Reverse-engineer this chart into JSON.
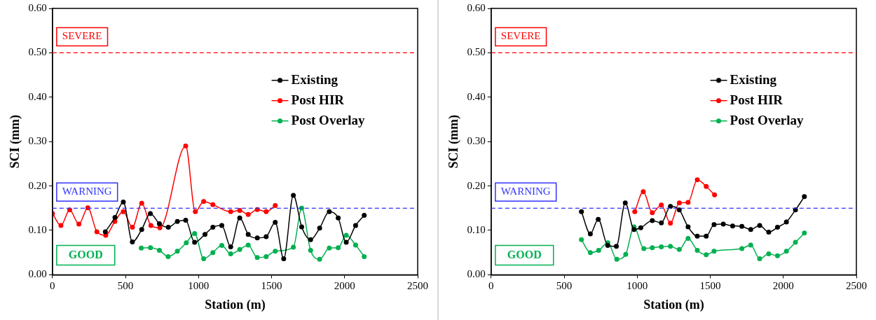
{
  "chart_data": [
    {
      "type": "line",
      "xlabel": "Station (m)",
      "ylabel": "SCI (mm)",
      "xlim": [
        0,
        2500
      ],
      "xticks": [
        0,
        500,
        1000,
        1500,
        2000,
        2500
      ],
      "ylim": [
        0,
        0.6
      ],
      "yticks": [
        {
          "value": 0,
          "label": "0.00"
        },
        {
          "value": 0.1,
          "label": "0.10"
        },
        {
          "value": 0.2,
          "label": "0.20"
        },
        {
          "value": 0.3,
          "label": "0.30"
        },
        {
          "value": 0.4,
          "label": "0.40"
        },
        {
          "value": 0.5,
          "label": "0.50"
        },
        {
          "value": 0.6,
          "label": "0.60"
        }
      ],
      "grid": false,
      "legend": "top right",
      "marker": "circle",
      "line_style": "solid",
      "ref_lines": [
        {
          "axis": "y",
          "value": 0.5,
          "label": "SEVERE",
          "color": "#ff0000",
          "line_style": "dashed"
        },
        {
          "axis": "y",
          "value": 0.15,
          "label": "WARNING",
          "color": "#3333ff",
          "line_style": "dashed"
        }
      ],
      "annotations": [
        "GOOD"
      ],
      "series": [
        {
          "name": "Existing",
          "color": "#000000",
          "x": [
            362,
            428,
            485,
            547,
            611,
            670,
            732,
            793,
            855,
            912,
            973,
            1044,
            1098,
            1159,
            1220,
            1282,
            1340,
            1402,
            1463,
            1525,
            1583,
            1649,
            1706,
            1767,
            1829,
            1895,
            1956,
            2011,
            2075,
            2134
          ],
          "values": [
            0.097,
            0.129,
            0.164,
            0.074,
            0.102,
            0.138,
            0.115,
            0.107,
            0.12,
            0.123,
            0.073,
            0.091,
            0.107,
            0.111,
            0.063,
            0.128,
            0.091,
            0.083,
            0.086,
            0.118,
            0.036,
            0.179,
            0.108,
            0.079,
            0.105,
            0.142,
            0.128,
            0.073,
            0.111,
            0.134
          ]
        },
        {
          "name": "Post HIR",
          "color": "#ff0000",
          "x": [
            0,
            58,
            118,
            181,
            242,
            304,
            365,
            427,
            485,
            547,
            611,
            674,
            735,
            912,
            978,
            1035,
            1098,
            1220,
            1282,
            1340,
            1402,
            1463,
            1525
          ],
          "values": [
            0.138,
            0.111,
            0.146,
            0.114,
            0.151,
            0.097,
            0.089,
            0.12,
            0.142,
            0.107,
            0.161,
            0.111,
            0.106,
            0.29,
            0.142,
            0.165,
            0.158,
            0.142,
            0.145,
            0.136,
            0.147,
            0.142,
            0.156
          ]
        },
        {
          "name": "Post Overlay",
          "color": "#00b050",
          "x": [
            608,
            671,
            732,
            792,
            855,
            916,
            973,
            1035,
            1098,
            1159,
            1220,
            1282,
            1340,
            1402,
            1463,
            1525,
            1649,
            1706,
            1767,
            1829,
            1895,
            1956,
            2011,
            2075,
            2134
          ],
          "values": [
            0.06,
            0.061,
            0.055,
            0.041,
            0.053,
            0.072,
            0.093,
            0.036,
            0.05,
            0.066,
            0.047,
            0.057,
            0.067,
            0.039,
            0.041,
            0.053,
            0.062,
            0.15,
            0.055,
            0.035,
            0.06,
            0.061,
            0.089,
            0.067,
            0.041
          ]
        }
      ]
    },
    {
      "type": "line",
      "xlabel": "Station (m)",
      "ylabel": "SCI (mm)",
      "xlim": [
        0,
        2500
      ],
      "xticks": [
        0,
        500,
        1000,
        1500,
        2000,
        2500
      ],
      "ylim": [
        0,
        0.6
      ],
      "yticks": [
        {
          "value": 0,
          "label": "0.00"
        },
        {
          "value": 0.1,
          "label": "0.10"
        },
        {
          "value": 0.2,
          "label": "0.20"
        },
        {
          "value": 0.3,
          "label": "0.30"
        },
        {
          "value": 0.4,
          "label": "0.40"
        },
        {
          "value": 0.5,
          "label": "0.50"
        },
        {
          "value": 0.6,
          "label": "0.60"
        }
      ],
      "grid": false,
      "legend": "top right",
      "marker": "circle",
      "line_style": "solid",
      "ref_lines": [
        {
          "axis": "y",
          "value": 0.5,
          "label": "SEVERE",
          "color": "#ff0000",
          "line_style": "dashed"
        },
        {
          "axis": "y",
          "value": 0.15,
          "label": "WARNING",
          "color": "#3333ff",
          "line_style": "dashed"
        }
      ],
      "annotations": [
        "GOOD"
      ],
      "series": [
        {
          "name": "Existing",
          "color": "#000000",
          "x": [
            618,
            679,
            733,
            798,
            857,
            918,
            978,
            1024,
            1103,
            1165,
            1227,
            1288,
            1348,
            1411,
            1472,
            1526,
            1589,
            1653,
            1716,
            1777,
            1838,
            1900,
            1960,
            2021,
            2083,
            2144
          ],
          "values": [
            0.142,
            0.092,
            0.125,
            0.066,
            0.064,
            0.162,
            0.102,
            0.106,
            0.122,
            0.117,
            0.154,
            0.146,
            0.108,
            0.087,
            0.087,
            0.113,
            0.114,
            0.11,
            0.109,
            0.102,
            0.111,
            0.096,
            0.107,
            0.119,
            0.146,
            0.176
          ]
        },
        {
          "name": "Post HIR",
          "color": "#ff0000",
          "x": [
            983,
            1041,
            1103,
            1165,
            1227,
            1288,
            1348,
            1411,
            1472,
            1529
          ],
          "values": [
            0.142,
            0.187,
            0.14,
            0.157,
            0.116,
            0.162,
            0.163,
            0.214,
            0.199,
            0.18
          ]
        },
        {
          "name": "Post Overlay",
          "color": "#00b050",
          "x": [
            618,
            679,
            736,
            799,
            860,
            921,
            978,
            1045,
            1103,
            1165,
            1227,
            1288,
            1348,
            1411,
            1472,
            1526,
            1716,
            1777,
            1838,
            1900,
            1960,
            2021,
            2083,
            2144
          ],
          "values": [
            0.079,
            0.05,
            0.055,
            0.072,
            0.035,
            0.046,
            0.108,
            0.059,
            0.061,
            0.063,
            0.064,
            0.057,
            0.082,
            0.055,
            0.045,
            0.053,
            0.059,
            0.067,
            0.036,
            0.047,
            0.043,
            0.053,
            0.073,
            0.094
          ]
        }
      ]
    }
  ]
}
